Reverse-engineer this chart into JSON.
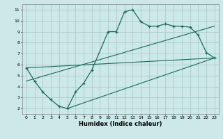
{
  "xlabel": "Humidex (Indice chaleur)",
  "bg_color": "#cce8e8",
  "grid_color": "#aacccc",
  "line_color": "#1a6b5a",
  "xlim": [
    -0.5,
    23.5
  ],
  "ylim": [
    1.5,
    11.5
  ],
  "xticks": [
    0,
    1,
    2,
    3,
    4,
    5,
    6,
    7,
    8,
    9,
    10,
    11,
    12,
    13,
    14,
    15,
    16,
    17,
    18,
    19,
    20,
    21,
    22,
    23
  ],
  "yticks": [
    2,
    3,
    4,
    5,
    6,
    7,
    8,
    9,
    10,
    11
  ],
  "curve_x": [
    0,
    1,
    2,
    3,
    4,
    5,
    6,
    7,
    8,
    10,
    11,
    12,
    13,
    14,
    15,
    16,
    17,
    18,
    19,
    20,
    21,
    22,
    23
  ],
  "curve_y": [
    5.7,
    4.5,
    3.5,
    2.8,
    2.2,
    2.0,
    3.5,
    4.3,
    5.5,
    9.0,
    9.0,
    10.8,
    11.0,
    9.9,
    9.5,
    9.5,
    9.7,
    9.5,
    9.5,
    9.4,
    8.7,
    7.1,
    6.6
  ],
  "line1_x": [
    0,
    23
  ],
  "line1_y": [
    4.5,
    9.5
  ],
  "line2_x": [
    0,
    23
  ],
  "line2_y": [
    5.7,
    6.6
  ],
  "line3_x": [
    5,
    23
  ],
  "line3_y": [
    2.0,
    6.6
  ]
}
